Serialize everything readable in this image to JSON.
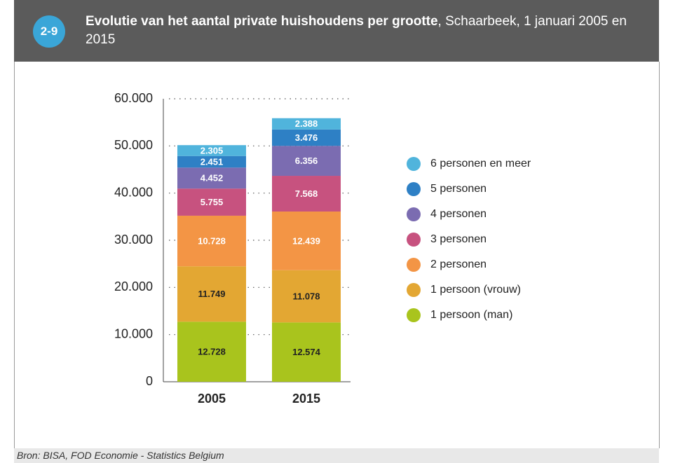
{
  "badge": "2-9",
  "chart_data": {
    "type": "stacked_bar",
    "title": "Evolutie van het aantal private huishoudens per grootte",
    "subtitle": ", Schaarbeek, 1 januari 2005 en 2015",
    "source": "Bron: BISA, FOD Economie - Statistics Belgium",
    "categories": [
      "2005",
      "2015"
    ],
    "ylim": [
      0,
      60000
    ],
    "yticks": [
      0,
      {
        "value": 10000,
        "label": "10.000"
      },
      {
        "value": 20000,
        "label": "20.000"
      },
      {
        "value": 30000,
        "label": "30.000"
      },
      {
        "value": 40000,
        "label": "40.000"
      },
      {
        "value": 50000,
        "label": "50.000"
      },
      {
        "value": 60000,
        "label": "60.000"
      }
    ],
    "grid": true,
    "series": [
      {
        "name": "1 persoon (man)",
        "color": "#a9c41d",
        "label_color": "#222222",
        "values": [
          12728,
          12574
        ],
        "value_labels": [
          "12.728",
          "12.574"
        ]
      },
      {
        "name": "1 persoon (vrouw)",
        "color": "#e3a733",
        "label_color": "#222222",
        "values": [
          11749,
          11078
        ],
        "value_labels": [
          "11.749",
          "11.078"
        ]
      },
      {
        "name": "2 personen",
        "color": "#f39545",
        "label_color": "#ffffff",
        "values": [
          10728,
          12439
        ],
        "value_labels": [
          "10.728",
          "12.439"
        ]
      },
      {
        "name": "3 personen",
        "color": "#c7527f",
        "label_color": "#ffffff",
        "values": [
          5755,
          7568
        ],
        "value_labels": [
          "5.755",
          "7.568"
        ]
      },
      {
        "name": "4 personen",
        "color": "#7b6cb1",
        "label_color": "#ffffff",
        "values": [
          4452,
          6356
        ],
        "value_labels": [
          "4.452",
          "6.356"
        ]
      },
      {
        "name": "5 personen",
        "color": "#2e80c5",
        "label_color": "#ffffff",
        "values": [
          2451,
          3476
        ],
        "value_labels": [
          "2.451",
          "3.476"
        ]
      },
      {
        "name": "6 personen en meer",
        "color": "#50b4dc",
        "label_color": "#ffffff",
        "values": [
          2305,
          2388
        ],
        "value_labels": [
          "2.305",
          "2.388"
        ]
      }
    ]
  }
}
